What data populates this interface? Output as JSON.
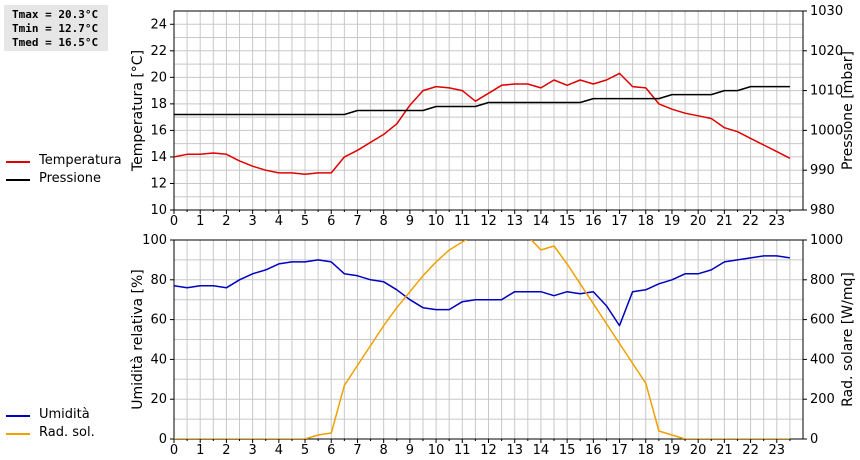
{
  "stats": {
    "tmax": "Tmax = 20.3°C",
    "tmin": "Tmin = 12.7°C",
    "tmed": "Tmed = 16.5°C"
  },
  "colors": {
    "temperature": "#e00000",
    "pressure": "#000000",
    "humidity": "#0000c0",
    "radiation": "#f0a000",
    "grid": "#c8c8c8"
  },
  "chart_data": [
    {
      "type": "line",
      "ylabel": "Temperatura [°C]",
      "y2label": "Pressione [mbar]",
      "xlim": [
        0,
        24
      ],
      "ylim": [
        10,
        25
      ],
      "y2lim": [
        980,
        1030
      ],
      "grid": true,
      "legend_position": "left",
      "xticks": [
        "0",
        "1",
        "2",
        "3",
        "4",
        "5",
        "6",
        "7",
        "8",
        "9",
        "10",
        "11",
        "12",
        "13",
        "14",
        "15",
        "16",
        "17",
        "18",
        "19",
        "20",
        "21",
        "22",
        "23"
      ],
      "yticks": [
        "10",
        "12",
        "14",
        "16",
        "18",
        "20",
        "22",
        "24"
      ],
      "y2ticks": [
        "980",
        "990",
        "1000",
        "1010",
        "1020",
        "1030"
      ],
      "series": [
        {
          "name": "Temperatura",
          "axis": "left",
          "color": "#e00000",
          "x": [
            0,
            0.5,
            1,
            1.5,
            2,
            2.5,
            3,
            3.5,
            4,
            4.5,
            5,
            5.5,
            6,
            6.5,
            7,
            7.5,
            8,
            8.5,
            9,
            9.5,
            10,
            10.5,
            11,
            11.5,
            12,
            12.5,
            13,
            13.5,
            14,
            14.5,
            15,
            15.5,
            16,
            16.5,
            17,
            17.5,
            18,
            18.5,
            19,
            19.5,
            20,
            20.5,
            21,
            21.5,
            22,
            22.5,
            23,
            23.5
          ],
          "values": [
            14.0,
            14.2,
            14.2,
            14.3,
            14.2,
            13.7,
            13.3,
            13.0,
            12.8,
            12.8,
            12.7,
            12.8,
            12.8,
            14.0,
            14.5,
            15.1,
            15.7,
            16.5,
            17.9,
            19.0,
            19.3,
            19.2,
            19.0,
            18.2,
            18.8,
            19.4,
            19.5,
            19.5,
            19.2,
            19.8,
            19.4,
            19.8,
            19.5,
            19.8,
            20.3,
            19.3,
            19.2,
            18.0,
            17.6,
            17.3,
            17.1,
            16.9,
            16.2,
            15.9,
            15.4,
            14.9,
            14.4,
            13.9
          ]
        },
        {
          "name": "Pressione",
          "axis": "right",
          "color": "#000000",
          "x": [
            0,
            6.5,
            7,
            9.5,
            10,
            11.5,
            12,
            15.5,
            16,
            18.5,
            19,
            20.5,
            21,
            21.5,
            22,
            23.5
          ],
          "values": [
            1004,
            1004,
            1005,
            1005,
            1006,
            1006,
            1007,
            1007,
            1008,
            1008,
            1009,
            1009,
            1010,
            1010,
            1011,
            1011
          ]
        }
      ]
    },
    {
      "type": "line",
      "ylabel": "Umidità relativa [%]",
      "y2label": "Rad. solare [W/mq]",
      "xlim": [
        0,
        24
      ],
      "ylim": [
        0,
        100
      ],
      "y2lim": [
        0,
        1000
      ],
      "grid": true,
      "legend_position": "left",
      "xticks": [
        "0",
        "1",
        "2",
        "3",
        "4",
        "5",
        "6",
        "7",
        "8",
        "9",
        "10",
        "11",
        "12",
        "13",
        "14",
        "15",
        "16",
        "17",
        "18",
        "19",
        "20",
        "21",
        "22",
        "23"
      ],
      "yticks": [
        "0",
        "20",
        "40",
        "60",
        "80",
        "100"
      ],
      "y2ticks": [
        "0",
        "200",
        "400",
        "600",
        "800",
        "1000"
      ],
      "series": [
        {
          "name": "Umidità",
          "axis": "left",
          "color": "#0000c0",
          "x": [
            0,
            0.5,
            1,
            1.5,
            2,
            2.5,
            3,
            3.5,
            4,
            4.5,
            5,
            5.5,
            6,
            6.5,
            7,
            7.5,
            8,
            8.5,
            9,
            9.5,
            10,
            10.5,
            11,
            11.5,
            12,
            12.5,
            13,
            13.5,
            14,
            14.5,
            15,
            15.5,
            16,
            16.5,
            17,
            17.5,
            18,
            18.5,
            19,
            19.5,
            20,
            20.5,
            21,
            21.5,
            22,
            22.5,
            23,
            23.5
          ],
          "values": [
            77,
            76,
            77,
            77,
            76,
            80,
            83,
            85,
            88,
            89,
            89,
            90,
            89,
            83,
            82,
            80,
            79,
            75,
            70,
            66,
            65,
            65,
            69,
            70,
            70,
            70,
            74,
            74,
            74,
            72,
            74,
            73,
            74,
            67,
            57,
            74,
            75,
            78,
            80,
            83,
            83,
            85,
            89,
            90,
            91,
            92,
            92,
            91
          ]
        },
        {
          "name": "Rad. sol.",
          "axis": "right",
          "color": "#f0a000",
          "x": [
            0,
            1,
            2,
            3,
            4,
            5,
            5.5,
            6,
            6.5,
            7,
            7.5,
            8,
            8.5,
            9,
            9.5,
            10,
            10.5,
            11,
            11.5,
            12,
            12.5,
            13,
            13.5,
            14,
            14.5,
            15,
            15.5,
            16,
            16.5,
            17,
            17.5,
            18,
            18.5,
            19,
            19.5,
            20,
            21,
            22,
            23,
            23.5
          ],
          "values": [
            0,
            0,
            0,
            0,
            0,
            0,
            20,
            30,
            270,
            370,
            470,
            570,
            660,
            740,
            820,
            890,
            950,
            990,
            1030,
            1060,
            1070,
            1060,
            1020,
            950,
            970,
            880,
            780,
            680,
            580,
            480,
            380,
            280,
            40,
            20,
            0,
            0,
            0,
            0,
            0,
            0
          ]
        }
      ]
    }
  ]
}
